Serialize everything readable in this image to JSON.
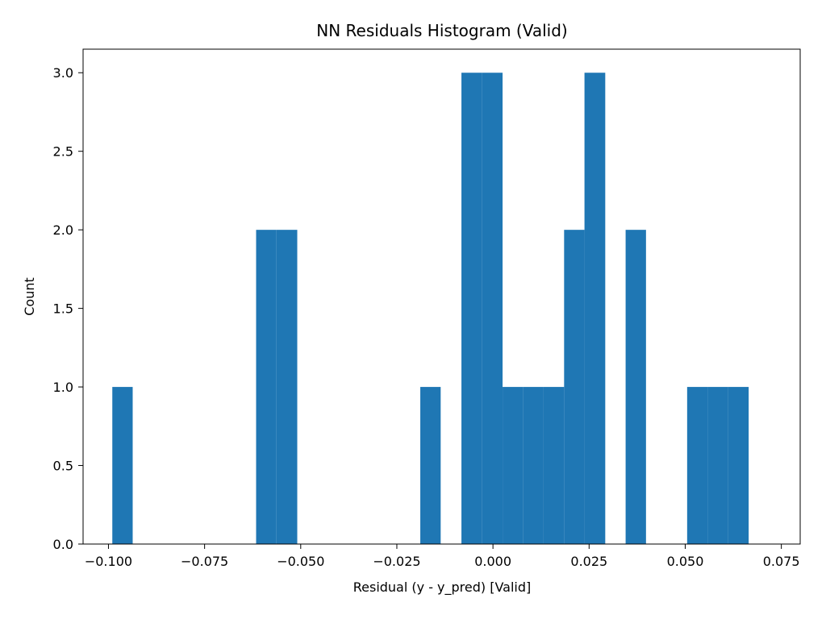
{
  "chart_data": {
    "type": "bar",
    "title": "NN Residuals Histogram (Valid)",
    "xlabel": "Residual (y - y_pred) [Valid]",
    "ylabel": "Count",
    "xlim": [
      -0.1066,
      0.0799
    ],
    "ylim": [
      0,
      3.15
    ],
    "bin_width": 0.00534,
    "bins": [
      {
        "start": -0.099,
        "end": -0.0937,
        "count": 1
      },
      {
        "start": -0.0937,
        "end": -0.0883,
        "count": 0
      },
      {
        "start": -0.0883,
        "end": -0.083,
        "count": 0
      },
      {
        "start": -0.083,
        "end": -0.0776,
        "count": 0
      },
      {
        "start": -0.0776,
        "end": -0.0723,
        "count": 0
      },
      {
        "start": -0.0723,
        "end": -0.067,
        "count": 0
      },
      {
        "start": -0.067,
        "end": -0.0616,
        "count": 0
      },
      {
        "start": -0.0616,
        "end": -0.0563,
        "count": 2
      },
      {
        "start": -0.0563,
        "end": -0.0509,
        "count": 2
      },
      {
        "start": -0.0509,
        "end": -0.0456,
        "count": 0
      },
      {
        "start": -0.0456,
        "end": -0.0403,
        "count": 0
      },
      {
        "start": -0.0403,
        "end": -0.0349,
        "count": 0
      },
      {
        "start": -0.0349,
        "end": -0.0296,
        "count": 0
      },
      {
        "start": -0.0296,
        "end": -0.0242,
        "count": 0
      },
      {
        "start": -0.0242,
        "end": -0.0189,
        "count": 0
      },
      {
        "start": -0.0189,
        "end": -0.0136,
        "count": 1
      },
      {
        "start": -0.0136,
        "end": -0.0082,
        "count": 0
      },
      {
        "start": -0.0082,
        "end": -0.0029,
        "count": 3
      },
      {
        "start": -0.0029,
        "end": 0.0025,
        "count": 3
      },
      {
        "start": 0.0025,
        "end": 0.0078,
        "count": 1
      },
      {
        "start": 0.0078,
        "end": 0.0131,
        "count": 1
      },
      {
        "start": 0.0131,
        "end": 0.0185,
        "count": 1
      },
      {
        "start": 0.0185,
        "end": 0.0238,
        "count": 2
      },
      {
        "start": 0.0238,
        "end": 0.0292,
        "count": 3
      },
      {
        "start": 0.0292,
        "end": 0.0345,
        "count": 0
      },
      {
        "start": 0.0345,
        "end": 0.0398,
        "count": 2
      },
      {
        "start": 0.0398,
        "end": 0.0452,
        "count": 0
      },
      {
        "start": 0.0452,
        "end": 0.0505,
        "count": 0
      },
      {
        "start": 0.0505,
        "end": 0.0559,
        "count": 1
      },
      {
        "start": 0.0559,
        "end": 0.0612,
        "count": 1
      },
      {
        "start": 0.0612,
        "end": 0.0665,
        "count": 1
      }
    ],
    "x_ticks": [
      {
        "value": -0.1,
        "label": "−0.100"
      },
      {
        "value": -0.075,
        "label": "−0.075"
      },
      {
        "value": -0.05,
        "label": "−0.050"
      },
      {
        "value": -0.025,
        "label": "−0.025"
      },
      {
        "value": 0.0,
        "label": "0.000"
      },
      {
        "value": 0.025,
        "label": "0.025"
      },
      {
        "value": 0.05,
        "label": "0.050"
      },
      {
        "value": 0.075,
        "label": "0.075"
      }
    ],
    "y_ticks": [
      {
        "value": 0.0,
        "label": "0.0"
      },
      {
        "value": 0.5,
        "label": "0.5"
      },
      {
        "value": 1.0,
        "label": "1.0"
      },
      {
        "value": 1.5,
        "label": "1.5"
      },
      {
        "value": 2.0,
        "label": "2.0"
      },
      {
        "value": 2.5,
        "label": "2.5"
      },
      {
        "value": 3.0,
        "label": "3.0"
      }
    ],
    "grid": false,
    "legend": "none",
    "colors": {
      "bar": "#1f77b4",
      "axis": "#000000",
      "background": "#ffffff"
    }
  }
}
